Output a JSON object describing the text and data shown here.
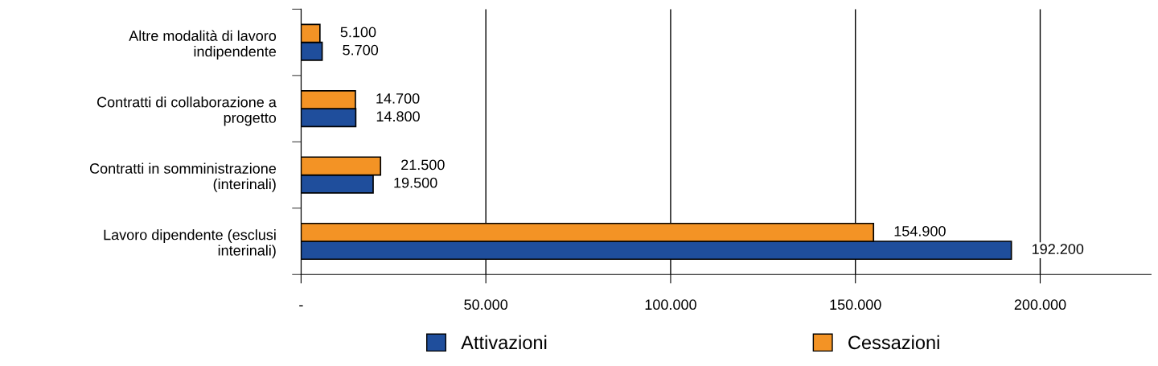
{
  "chart_data": {
    "type": "bar",
    "orientation": "horizontal",
    "categories": [
      "Altre modalità di lavoro indipendente",
      "Contratti di collaborazione a progetto",
      "Contratti in somministrazione (interinali)",
      "Lavoro dipendente (esclusi interinali)"
    ],
    "series": [
      {
        "name": "Attivazioni",
        "color": "#1f4e9c",
        "values": [
          5700,
          14800,
          19500,
          192200
        ],
        "value_labels": [
          "5.700",
          "14.800",
          "19.500",
          "192.200"
        ]
      },
      {
        "name": "Cessazioni",
        "color": "#f39325",
        "values": [
          5100,
          14700,
          21500,
          154900
        ],
        "value_labels": [
          "5.100",
          "14.700",
          "21.500",
          "154.900"
        ]
      }
    ],
    "xlim": [
      0,
      230000
    ],
    "xticks": [
      {
        "value": 0,
        "label": "-"
      },
      {
        "value": 50000,
        "label": "50.000"
      },
      {
        "value": 100000,
        "label": "100.000"
      },
      {
        "value": 150000,
        "label": "150.000"
      },
      {
        "value": 200000,
        "label": "200.000"
      }
    ],
    "grid": "x",
    "legend": "bottom"
  }
}
